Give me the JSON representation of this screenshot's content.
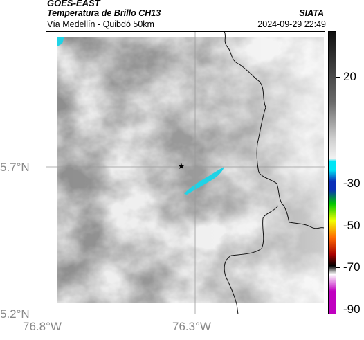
{
  "header": {
    "satellite": "GOES-EAST",
    "product": "Temperatura de Brillo CH13",
    "org": "SIATA",
    "region": "Vía Medellín - Quibdó 50km",
    "datetime": "2024-09-29 22:49"
  },
  "axes": {
    "lat_labels": [
      "5.7°N",
      "5.2°N"
    ],
    "lon_labels": [
      "76.8°W",
      "76.3°W"
    ]
  },
  "colorbar": {
    "labels": [
      "20",
      "-30",
      "-50",
      "-70",
      "-90"
    ],
    "colors": [
      "#111111",
      "#6a6a6a",
      "#cfcfcf",
      "#f2f2f2",
      "#00e5f5",
      "#0a2fb8",
      "#00c800",
      "#f0ff00",
      "#ff6a00",
      "#a80000",
      "#000000",
      "#ffffff",
      "#c000c0"
    ]
  },
  "map": {
    "marker_icon": "star-icon",
    "cloud_base": "#8e8e8e",
    "cold_top_color": "#1fd3e6",
    "border_color": "#111111"
  }
}
